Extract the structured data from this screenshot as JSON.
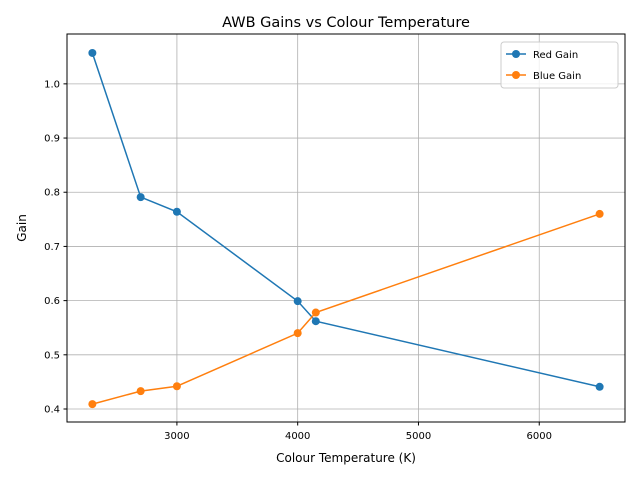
{
  "chart_data": {
    "type": "line",
    "title": "AWB Gains vs Colour Temperature",
    "xlabel": "Colour Temperature (K)",
    "ylabel": "Gain",
    "xlim": [
      2090,
      6710
    ],
    "ylim": [
      0.376,
      1.092
    ],
    "xticks": [
      3000,
      4000,
      5000,
      6000
    ],
    "yticks": [
      0.4,
      0.5,
      0.6,
      0.7,
      0.8,
      0.9,
      1.0
    ],
    "grid": true,
    "legend_position": "top-right",
    "x": [
      2300,
      2700,
      3000,
      4000,
      4150,
      6500
    ],
    "series": [
      {
        "name": "Red Gain",
        "color": "#1f77b4",
        "values": [
          1.057,
          0.791,
          0.764,
          0.599,
          0.562,
          0.441
        ]
      },
      {
        "name": "Blue Gain",
        "color": "#ff7f0e",
        "values": [
          0.409,
          0.433,
          0.442,
          0.54,
          0.578,
          0.76
        ]
      }
    ]
  }
}
